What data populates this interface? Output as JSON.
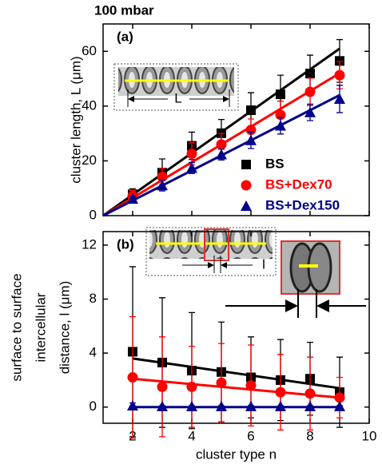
{
  "chart_data": [
    {
      "type": "scatter",
      "title": "100 mbar",
      "panel_label": "(a)",
      "ylabel": "cluster length, L (μm)",
      "inset_label": "L",
      "x": [
        2,
        3,
        4,
        5,
        6,
        7,
        8,
        9
      ],
      "xlim": [
        1,
        10
      ],
      "xticks": [
        2,
        4,
        6,
        8,
        10
      ],
      "ylim": [
        0,
        70
      ],
      "yticks": [
        0,
        20,
        40,
        60
      ],
      "fit_x": [
        1,
        9
      ],
      "legend": "lower right",
      "series": [
        {
          "name": "BS",
          "color": "#000000",
          "marker": "square",
          "values": [
            7.8,
            15.7,
            25.5,
            30.1,
            38.5,
            44.3,
            51.9,
            56.5
          ],
          "errors": [
            2,
            5,
            5,
            5,
            6.4,
            7,
            6.7,
            7.8
          ],
          "fit": [
            0,
            61
          ]
        },
        {
          "name": "BS+Dex70",
          "color": "#ff0000",
          "marker": "circle",
          "values": [
            7.2,
            14.2,
            22.6,
            26,
            31.3,
            36.8,
            45.2,
            51.3
          ],
          "errors": [
            2,
            3,
            4,
            4,
            4,
            5,
            5,
            5
          ],
          "fit": [
            0,
            52
          ]
        },
        {
          "name": "BS+Dex150",
          "color": "#00008b",
          "marker": "triangle",
          "values": [
            6.1,
            11,
            17.4,
            22.3,
            27.5,
            32.8,
            37.7,
            42.6
          ],
          "errors": [
            1,
            2,
            2,
            2,
            3,
            3,
            3,
            5
          ],
          "fit": [
            0,
            44
          ]
        }
      ]
    },
    {
      "type": "scatter",
      "panel_label": "(b)",
      "ylabel": [
        "surface to surface",
        "intercellular",
        "distance, l (μm)"
      ],
      "xlabel": "cluster type n",
      "inset_label": "l",
      "x": [
        2,
        3,
        4,
        5,
        6,
        7,
        8,
        9
      ],
      "xlim": [
        1,
        10
      ],
      "xticks": [
        2,
        4,
        6,
        8,
        10
      ],
      "ylim": [
        -1.2,
        13
      ],
      "yticks": [
        0,
        4,
        8,
        12
      ],
      "fit_x": [
        2,
        9
      ],
      "series": [
        {
          "color": "#000000",
          "marker": "square",
          "values": [
            4.1,
            3.3,
            2.7,
            2.6,
            2.2,
            2.0,
            2.1,
            1.1
          ],
          "errors": [
            6.3,
            4.8,
            4.3,
            3.7,
            3,
            3,
            2.7,
            2.6
          ],
          "fit": [
            3.6,
            1.4
          ]
        },
        {
          "color": "#ff0000",
          "marker": "circle",
          "values": [
            2.2,
            1.5,
            1.5,
            1.8,
            1.6,
            1.1,
            1.0,
            0.7
          ],
          "errors": [
            4.5,
            3.7,
            3,
            2.9,
            3,
            2.8,
            2.7,
            1.5
          ],
          "fit": [
            2.1,
            0.7
          ]
        },
        {
          "color": "#00008b",
          "marker": "triangle",
          "values": [
            0.1,
            0.05,
            0.05,
            0.05,
            0.05,
            0.05,
            0.05,
            0.05
          ],
          "errors": [
            0.2,
            0.05,
            0.05,
            0.05,
            0.05,
            0.05,
            0.05,
            0.05
          ],
          "fit": [
            0,
            0
          ]
        }
      ]
    }
  ]
}
